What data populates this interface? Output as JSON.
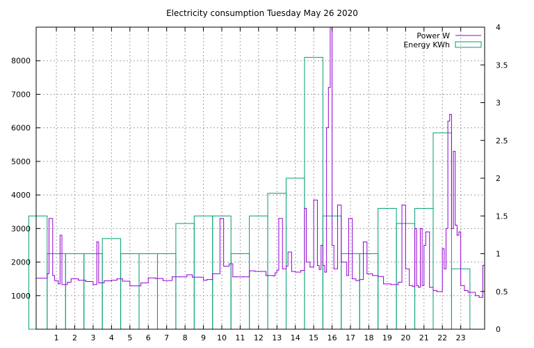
{
  "chart_data": {
    "type": "line",
    "title": "Electricity consumption Tuesday May 26 2020",
    "xlabel": "",
    "ylabel": "",
    "y2label": "",
    "grid": true,
    "legend_position": "top-right",
    "xlim": [
      -0.1,
      24.3
    ],
    "ylim": [
      0,
      9000
    ],
    "y2lim": [
      0,
      4
    ],
    "xticks": [
      1,
      2,
      3,
      4,
      5,
      6,
      7,
      8,
      9,
      10,
      11,
      12,
      13,
      14,
      15,
      16,
      17,
      18,
      19,
      20,
      21,
      22,
      23
    ],
    "yticks": [
      1000,
      2000,
      3000,
      4000,
      5000,
      6000,
      7000,
      8000
    ],
    "y2ticks": [
      0,
      0.5,
      1,
      1.5,
      2,
      2.5,
      3,
      3.5,
      4
    ],
    "y2tick_labels": [
      "0",
      "0.5",
      "1",
      "1.5",
      "2",
      "2.5",
      "3",
      "3.5",
      "4"
    ],
    "colors": {
      "power": "#9400d3",
      "energy": "#009e73"
    },
    "series": [
      {
        "name": "Power W",
        "axis": "y",
        "style": "steps",
        "x": [
          -0.1,
          0.5,
          0.6,
          0.8,
          0.9,
          1.1,
          1.2,
          1.3,
          1.6,
          1.8,
          2.2,
          2.6,
          3.0,
          3.2,
          3.3,
          3.6,
          4.0,
          4.3,
          4.6,
          5.0,
          5.6,
          6.0,
          6.4,
          6.8,
          7.3,
          7.7,
          8.1,
          8.4,
          9.0,
          9.2,
          9.5,
          9.9,
          10.1,
          10.4,
          10.6,
          10.8,
          11.2,
          11.5,
          11.8,
          12.4,
          12.8,
          12.9,
          13.0,
          13.1,
          13.3,
          13.5,
          13.6,
          13.8,
          14.0,
          14.3,
          14.5,
          14.6,
          14.8,
          15.0,
          15.2,
          15.3,
          15.4,
          15.5,
          15.6,
          15.7,
          15.8,
          15.9,
          16.0,
          16.1,
          16.3,
          16.5,
          16.8,
          16.9,
          17.1,
          17.3,
          17.5,
          17.7,
          17.9,
          18.2,
          18.5,
          18.8,
          19.2,
          19.6,
          19.8,
          20.0,
          20.2,
          20.4,
          20.5,
          20.6,
          20.7,
          20.8,
          20.9,
          21.0,
          21.1,
          21.3,
          21.5,
          21.7,
          21.9,
          22.0,
          22.1,
          22.2,
          22.3,
          22.4,
          22.5,
          22.6,
          22.7,
          22.8,
          22.9,
          23.0,
          23.2,
          23.4,
          23.6,
          23.8,
          24.0,
          24.2
        ],
        "y": [
          1520,
          1650,
          3300,
          1600,
          1450,
          1350,
          2800,
          1330,
          1400,
          1500,
          1460,
          1420,
          1330,
          2600,
          1380,
          1440,
          1460,
          1500,
          1430,
          1290,
          1380,
          1530,
          1510,
          1450,
          1560,
          1560,
          1620,
          1550,
          1460,
          1480,
          1650,
          3300,
          1880,
          1950,
          1560,
          1560,
          1560,
          1740,
          1720,
          1600,
          1590,
          1680,
          1760,
          3300,
          1800,
          1880,
          2300,
          1720,
          1700,
          1750,
          3600,
          2000,
          1850,
          3850,
          1900,
          1780,
          2500,
          1900,
          1700,
          6000,
          7200,
          9000,
          2500,
          1800,
          3700,
          2000,
          1600,
          3300,
          1500,
          1450,
          1480,
          2600,
          1650,
          1600,
          1570,
          1350,
          1330,
          1400,
          3700,
          1800,
          1300,
          1270,
          3000,
          1300,
          1250,
          3000,
          1300,
          2500,
          2900,
          1250,
          1150,
          1120,
          1120,
          2400,
          1800,
          3000,
          6200,
          6400,
          3000,
          5300,
          3100,
          2800,
          2900,
          1300,
          1150,
          1100,
          1100,
          1000,
          950,
          1900
        ]
      },
      {
        "name": "Energy KWh",
        "axis": "y2",
        "style": "histeps",
        "x": [
          0,
          1,
          2,
          3,
          4,
          5,
          6,
          7,
          8,
          9,
          10,
          11,
          12,
          13,
          14,
          15,
          16,
          17,
          18,
          19,
          20,
          21,
          22,
          23
        ],
        "values": [
          1.5,
          1.0,
          1.0,
          1.0,
          1.2,
          1.0,
          1.0,
          1.0,
          1.4,
          1.5,
          1.5,
          1.0,
          1.5,
          1.8,
          2.0,
          3.6,
          1.5,
          1.0,
          1.0,
          1.6,
          1.4,
          1.6,
          2.6,
          0.8
        ]
      }
    ]
  }
}
